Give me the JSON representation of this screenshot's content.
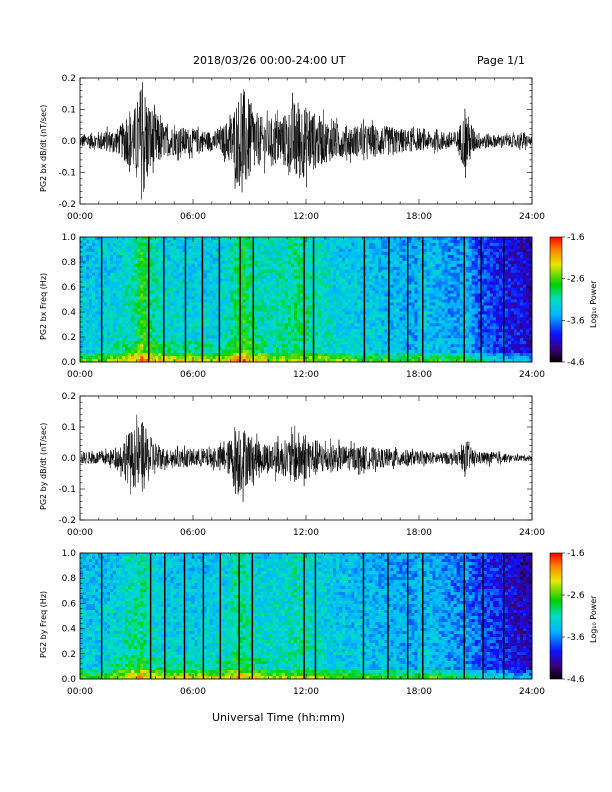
{
  "header": {
    "title": "2018/03/26  00:00-24:00 UT",
    "page": "Page 1/1"
  },
  "xaxis": {
    "tick_labels": [
      "00:00",
      "06:00",
      "12:00",
      "18:00",
      "24:00"
    ],
    "label": "Universal Time (hh:mm)"
  },
  "colorbar": {
    "label": "Log₁₀ Power",
    "tick_labels": [
      "-1.6",
      "-2.6",
      "-3.6",
      "-4.6"
    ]
  },
  "chart_data": [
    {
      "type": "line",
      "ylabel": "PG2 bx dB/dt (nT/sec)",
      "xlim": [
        0,
        24
      ],
      "ylim": [
        -0.2,
        0.2
      ],
      "ytick_labels": [
        "0.2",
        "0.1",
        "0.0",
        "-0.1",
        "-0.2"
      ],
      "envelope": {
        "x_hours": [
          0,
          1,
          2,
          2.6,
          3,
          3.3,
          3.7,
          4.5,
          6,
          7,
          7.5,
          8,
          8.3,
          8.7,
          9,
          9.5,
          10,
          11,
          11.5,
          12,
          12.5,
          13,
          14,
          15,
          16,
          17,
          18,
          20,
          20.5,
          21,
          22,
          23,
          23.5,
          24
        ],
        "amplitude": [
          0.02,
          0.03,
          0.04,
          0.08,
          0.12,
          0.2,
          0.12,
          0.05,
          0.04,
          0.03,
          0.04,
          0.08,
          0.13,
          0.17,
          0.13,
          0.08,
          0.07,
          0.09,
          0.14,
          0.11,
          0.09,
          0.07,
          0.05,
          0.05,
          0.05,
          0.04,
          0.03,
          0.03,
          0.1,
          0.03,
          0.02,
          0.02,
          0.03,
          0.01
        ]
      }
    },
    {
      "type": "heatmap",
      "ylabel": "PG2 bx Freq (Hz)",
      "xlim": [
        0,
        24
      ],
      "ylim": [
        0,
        1
      ],
      "ytick_labels": [
        "1.0",
        "0.8",
        "0.6",
        "0.4",
        "0.2",
        "0.0"
      ],
      "colorbar_range": [
        -4.6,
        -1.6
      ],
      "gap_lines_hours": [
        1.15,
        3.65,
        4.45,
        5.6,
        6.5,
        7.4,
        8.5,
        9.2,
        11.9,
        12.4,
        15.1,
        16.4,
        17.4,
        18.2,
        20.4,
        21.3,
        22.5
      ]
    },
    {
      "type": "line",
      "ylabel": "PG2 by dB/dt (nT/sec)",
      "xlim": [
        0,
        24
      ],
      "ylim": [
        -0.2,
        0.2
      ],
      "ytick_labels": [
        "0.2",
        "0.1",
        "0.0",
        "-0.1",
        "-0.2"
      ],
      "envelope": {
        "x_hours": [
          0,
          1,
          2,
          2.5,
          3,
          3.3,
          3.7,
          4.5,
          6,
          7,
          7.5,
          8,
          8.3,
          8.7,
          9,
          9.5,
          10,
          11,
          11.5,
          12,
          12.5,
          13,
          14,
          15,
          16,
          17,
          18,
          20,
          20.5,
          21,
          22,
          23,
          24
        ],
        "amplitude": [
          0.02,
          0.02,
          0.03,
          0.08,
          0.1,
          0.12,
          0.07,
          0.03,
          0.03,
          0.03,
          0.04,
          0.06,
          0.13,
          0.1,
          0.08,
          0.05,
          0.05,
          0.06,
          0.09,
          0.07,
          0.06,
          0.05,
          0.04,
          0.04,
          0.03,
          0.03,
          0.02,
          0.02,
          0.05,
          0.02,
          0.02,
          0.01,
          0.01
        ]
      }
    },
    {
      "type": "heatmap",
      "ylabel": "PG2 by Freq (Hz)",
      "xlim": [
        0,
        24
      ],
      "ylim": [
        0,
        1
      ],
      "ytick_labels": [
        "1.0",
        "0.8",
        "0.6",
        "0.4",
        "0.2",
        "0.0"
      ],
      "colorbar_range": [
        -4.6,
        -1.6
      ],
      "gap_lines_hours": [
        1.15,
        3.75,
        4.5,
        5.55,
        6.55,
        7.45,
        8.45,
        9.15,
        11.9,
        12.5,
        15.05,
        16.35,
        17.4,
        18.2,
        20.4,
        21.4,
        22.5
      ]
    }
  ]
}
